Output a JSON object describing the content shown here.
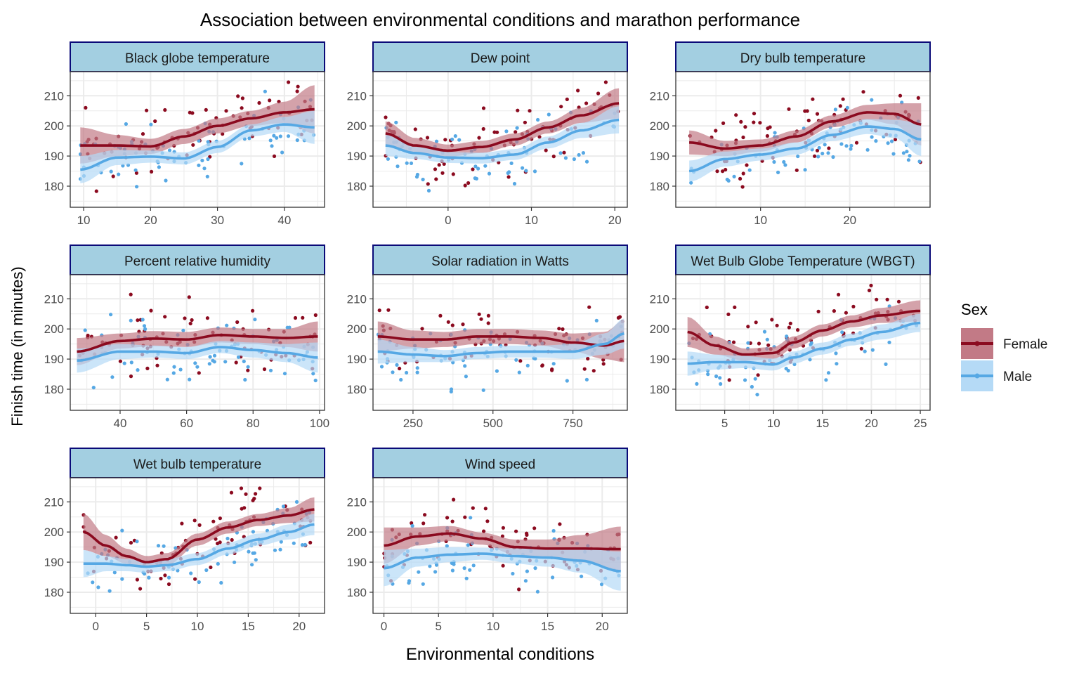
{
  "chart_data": {
    "type": "scatter",
    "title": "Association between environmental conditions and marathon performance",
    "xlabel": "Environmental conditions",
    "ylabel": "Finish time (in minutes)",
    "legend": {
      "title": "Sex",
      "placement": "right",
      "entries": [
        {
          "name": "Female",
          "color": "#8b0a1f",
          "ribbon": "#c27a86"
        },
        {
          "name": "Male",
          "color": "#56a8e4",
          "ribbon": "#b5daf6"
        }
      ]
    },
    "colors": {
      "strip_fill": "#a3cfe1",
      "strip_border": "#0a0a78",
      "grid": "#ebebeb",
      "panel_border": "#333333"
    },
    "shared_y": {
      "ylim": [
        173,
        218
      ],
      "yticks": [
        180,
        190,
        200,
        210
      ]
    },
    "grid": true,
    "panels": [
      {
        "strip": "Black globe temperature",
        "xlim": [
          8,
          46
        ],
        "xticks": [
          10,
          20,
          30,
          40
        ],
        "series": [
          {
            "name": "Female",
            "smooth_x": [
              9.5,
              15,
              20,
              25,
              30,
              35,
              40,
              44.5
            ],
            "smooth_y": [
              193.5,
              193.5,
              193.2,
              196.5,
              200,
              202.5,
              204.5,
              205.5
            ],
            "se": [
              6,
              3.5,
              2.5,
              2.5,
              2.5,
              2.5,
              3.5,
              8
            ],
            "n_points": 75,
            "x_range": [
              9.5,
              44.5
            ],
            "spread": 9,
            "seed": 11
          },
          {
            "name": "Male",
            "smooth_x": [
              9.5,
              15,
              20,
              25,
              30,
              35,
              40,
              44.5
            ],
            "smooth_y": [
              185.5,
              189.5,
              189.8,
              189.2,
              193,
              198.5,
              200.5,
              199.5
            ],
            "se": [
              4.5,
              2.5,
              2,
              2,
              2,
              2,
              2.5,
              5.5
            ],
            "n_points": 75,
            "x_range": [
              9.5,
              44.5
            ],
            "spread": 8,
            "seed": 12
          }
        ]
      },
      {
        "strip": "Dew point",
        "xlim": [
          -9,
          21.5
        ],
        "xticks": [
          0,
          10,
          20
        ],
        "tick_labels": [
          "0",
          "10",
          "20"
        ],
        "series": [
          {
            "name": "Female",
            "smooth_x": [
              -7.5,
              -4,
              0,
              4,
              8,
              12,
              16,
              20.5
            ],
            "smooth_y": [
              197.5,
              193.5,
              191.8,
              193,
              195.5,
              199.5,
              203.5,
              207.5
            ],
            "se": [
              4,
              2.5,
              2,
              2,
              2,
              2,
              2.5,
              5
            ],
            "n_points": 75,
            "x_range": [
              -7.5,
              20.5
            ],
            "spread": 9,
            "seed": 21
          },
          {
            "name": "Male",
            "smooth_x": [
              -7.5,
              -4,
              0,
              4,
              8,
              12,
              16,
              20.5
            ],
            "smooth_y": [
              193.5,
              191,
              189.5,
              189.3,
              190.5,
              194.5,
              198.5,
              202
            ],
            "se": [
              3.5,
              2,
              1.8,
              1.8,
              1.8,
              2,
              2.5,
              4.5
            ],
            "n_points": 75,
            "x_range": [
              -7.5,
              20.5
            ],
            "spread": 8,
            "seed": 22
          }
        ]
      },
      {
        "strip": "Dry bulb temperature",
        "xlim": [
          0.5,
          29
        ],
        "xticks": [
          10,
          20
        ],
        "series": [
          {
            "name": "Female",
            "smooth_x": [
              2,
              6,
              10,
              14,
              18,
              22,
              25,
              28
            ],
            "smooth_y": [
              194.5,
              192.5,
              193.5,
              196.5,
              201.5,
              204.5,
              204,
              200.5
            ],
            "se": [
              4,
              2.5,
              2,
              2,
              2,
              2.5,
              3.5,
              7
            ],
            "n_points": 75,
            "x_range": [
              2,
              28
            ],
            "spread": 9,
            "seed": 31
          },
          {
            "name": "Male",
            "smooth_x": [
              2,
              6,
              10,
              14,
              18,
              22,
              25,
              28
            ],
            "smooth_y": [
              185,
              189,
              190.5,
              192.5,
              197,
              199.8,
              199,
              195.5
            ],
            "se": [
              3.5,
              2.5,
              2,
              2,
              2,
              2.5,
              3,
              5.5
            ],
            "n_points": 75,
            "x_range": [
              2,
              28
            ],
            "spread": 8,
            "seed": 32
          }
        ]
      },
      {
        "strip": "Percent relative humidity",
        "xlim": [
          25,
          101.5
        ],
        "xticks": [
          40,
          60,
          80,
          100
        ],
        "series": [
          {
            "name": "Female",
            "smooth_x": [
              27,
              40,
              50,
              60,
              70,
              80,
              90,
              99.5
            ],
            "smooth_y": [
              192.5,
              196,
              196.8,
              196.5,
              198,
              197.5,
              197,
              197.5
            ],
            "se": [
              4.5,
              2.5,
              2.5,
              2.5,
              2.5,
              2.5,
              3,
              5
            ],
            "n_points": 75,
            "x_range": [
              27,
              99.5
            ],
            "spread": 9,
            "seed": 41
          },
          {
            "name": "Male",
            "smooth_x": [
              27,
              40,
              50,
              60,
              70,
              80,
              90,
              99.5
            ],
            "smooth_y": [
              189.5,
              192.5,
              192.5,
              192,
              194,
              193,
              192,
              190.5
            ],
            "se": [
              4,
              2.5,
              2,
              2,
              2,
              2.5,
              3,
              5
            ],
            "n_points": 75,
            "x_range": [
              27,
              99.5
            ],
            "spread": 8,
            "seed": 42
          }
        ]
      },
      {
        "strip": "Solar radiation in Watts",
        "xlim": [
          125,
          920
        ],
        "xticks": [
          250,
          500,
          750
        ],
        "series": [
          {
            "name": "Female",
            "smooth_x": [
              140,
              250,
              350,
              450,
              550,
              650,
              750,
              850,
              910
            ],
            "smooth_y": [
              197.5,
              196.5,
              196.5,
              197.5,
              197.5,
              197,
              195.5,
              194.5,
              196
            ],
            "se": [
              5,
              3,
              2.5,
              2.5,
              2.5,
              2.5,
              3,
              4.5,
              7
            ],
            "n_points": 75,
            "x_range": [
              140,
              905
            ],
            "spread": 9,
            "seed": 51
          },
          {
            "name": "Male",
            "smooth_x": [
              140,
              250,
              350,
              450,
              550,
              650,
              750,
              850,
              910
            ],
            "smooth_y": [
              192.5,
              191.5,
              191,
              192,
              192.5,
              192.5,
              192.5,
              195,
              198.5
            ],
            "se": [
              4,
              2.5,
              2,
              2,
              2,
              2,
              2.5,
              3.5,
              5
            ],
            "n_points": 75,
            "x_range": [
              140,
              905
            ],
            "spread": 8,
            "seed": 52
          }
        ]
      },
      {
        "strip": "Wet Bulb Globe Temperature (WBGT)",
        "xlim": [
          0,
          26
        ],
        "xticks": [
          5,
          10,
          15,
          20,
          25
        ],
        "series": [
          {
            "name": "Female",
            "smooth_x": [
              1.2,
              4,
              7,
              10,
              12,
              15,
              18,
              21,
              25
            ],
            "smooth_y": [
              199,
              194.5,
              191.5,
              192,
              195.5,
              199.5,
              202.5,
              204.5,
              206
            ],
            "se": [
              5,
              3,
              2,
              2,
              2,
              2,
              2,
              2.5,
              3.5
            ],
            "n_points": 75,
            "x_range": [
              1.2,
              25
            ],
            "spread": 9,
            "seed": 61
          },
          {
            "name": "Male",
            "smooth_x": [
              1.2,
              4,
              7,
              10,
              12,
              15,
              18,
              21,
              25
            ],
            "smooth_y": [
              188.5,
              189,
              189,
              188.2,
              190.5,
              193.5,
              196.5,
              199,
              202
            ],
            "se": [
              4,
              2.5,
              2,
              2,
              2,
              2,
              2,
              2.5,
              3
            ],
            "n_points": 75,
            "x_range": [
              1.2,
              25
            ],
            "spread": 8,
            "seed": 62
          }
        ]
      },
      {
        "strip": "Wet bulb temperature",
        "xlim": [
          -2.5,
          22.5
        ],
        "xticks": [
          0,
          5,
          10,
          15,
          20
        ],
        "series": [
          {
            "name": "Female",
            "smooth_x": [
              -1.2,
              1,
              3,
              5,
              7,
              10,
              13,
              16,
              19,
              21.5
            ],
            "smooth_y": [
              200,
              195.5,
              192,
              190,
              191,
              197.5,
              201.5,
              204,
              205.5,
              207.5
            ],
            "se": [
              6,
              3.5,
              2.5,
              2,
              2,
              2,
              2,
              2,
              2.5,
              4
            ],
            "n_points": 75,
            "x_range": [
              -1.2,
              21.5
            ],
            "spread": 9,
            "seed": 71
          },
          {
            "name": "Male",
            "smooth_x": [
              -1.2,
              1,
              3,
              5,
              7,
              10,
              13,
              16,
              19,
              21.5
            ],
            "smooth_y": [
              189.5,
              189.5,
              189,
              188.5,
              189,
              191,
              194.5,
              197.5,
              200,
              202.5
            ],
            "se": [
              4.5,
              2.5,
              2,
              2,
              2,
              2,
              2,
              2,
              2.5,
              3.5
            ],
            "n_points": 75,
            "x_range": [
              -1.2,
              21.5
            ],
            "spread": 8,
            "seed": 72
          }
        ]
      },
      {
        "strip": "Wind speed",
        "xlim": [
          -1,
          22.3
        ],
        "xticks": [
          0,
          5,
          10,
          15,
          20
        ],
        "series": [
          {
            "name": "Female",
            "smooth_x": [
              0,
              3,
              6,
              9,
              12,
              15,
              18,
              21.7
            ],
            "smooth_y": [
              195.5,
              198.5,
              199.5,
              197.8,
              195,
              194.5,
              194.5,
              194.3
            ],
            "se": [
              6,
              3,
              2.5,
              2,
              2.5,
              3,
              4.5,
              7.5
            ],
            "n_points": 75,
            "x_range": [
              0,
              21.7
            ],
            "spread": 9,
            "seed": 81
          },
          {
            "name": "Male",
            "smooth_x": [
              0,
              3,
              6,
              9,
              12,
              15,
              18,
              21.7
            ],
            "smooth_y": [
              188,
              191.5,
              192.5,
              192.8,
              192,
              191.5,
              190.5,
              187
            ],
            "se": [
              6,
              3,
              2.5,
              2,
              2.5,
              3,
              4,
              6.5
            ],
            "n_points": 75,
            "x_range": [
              0,
              21.7
            ],
            "spread": 8,
            "seed": 82
          }
        ]
      }
    ]
  }
}
